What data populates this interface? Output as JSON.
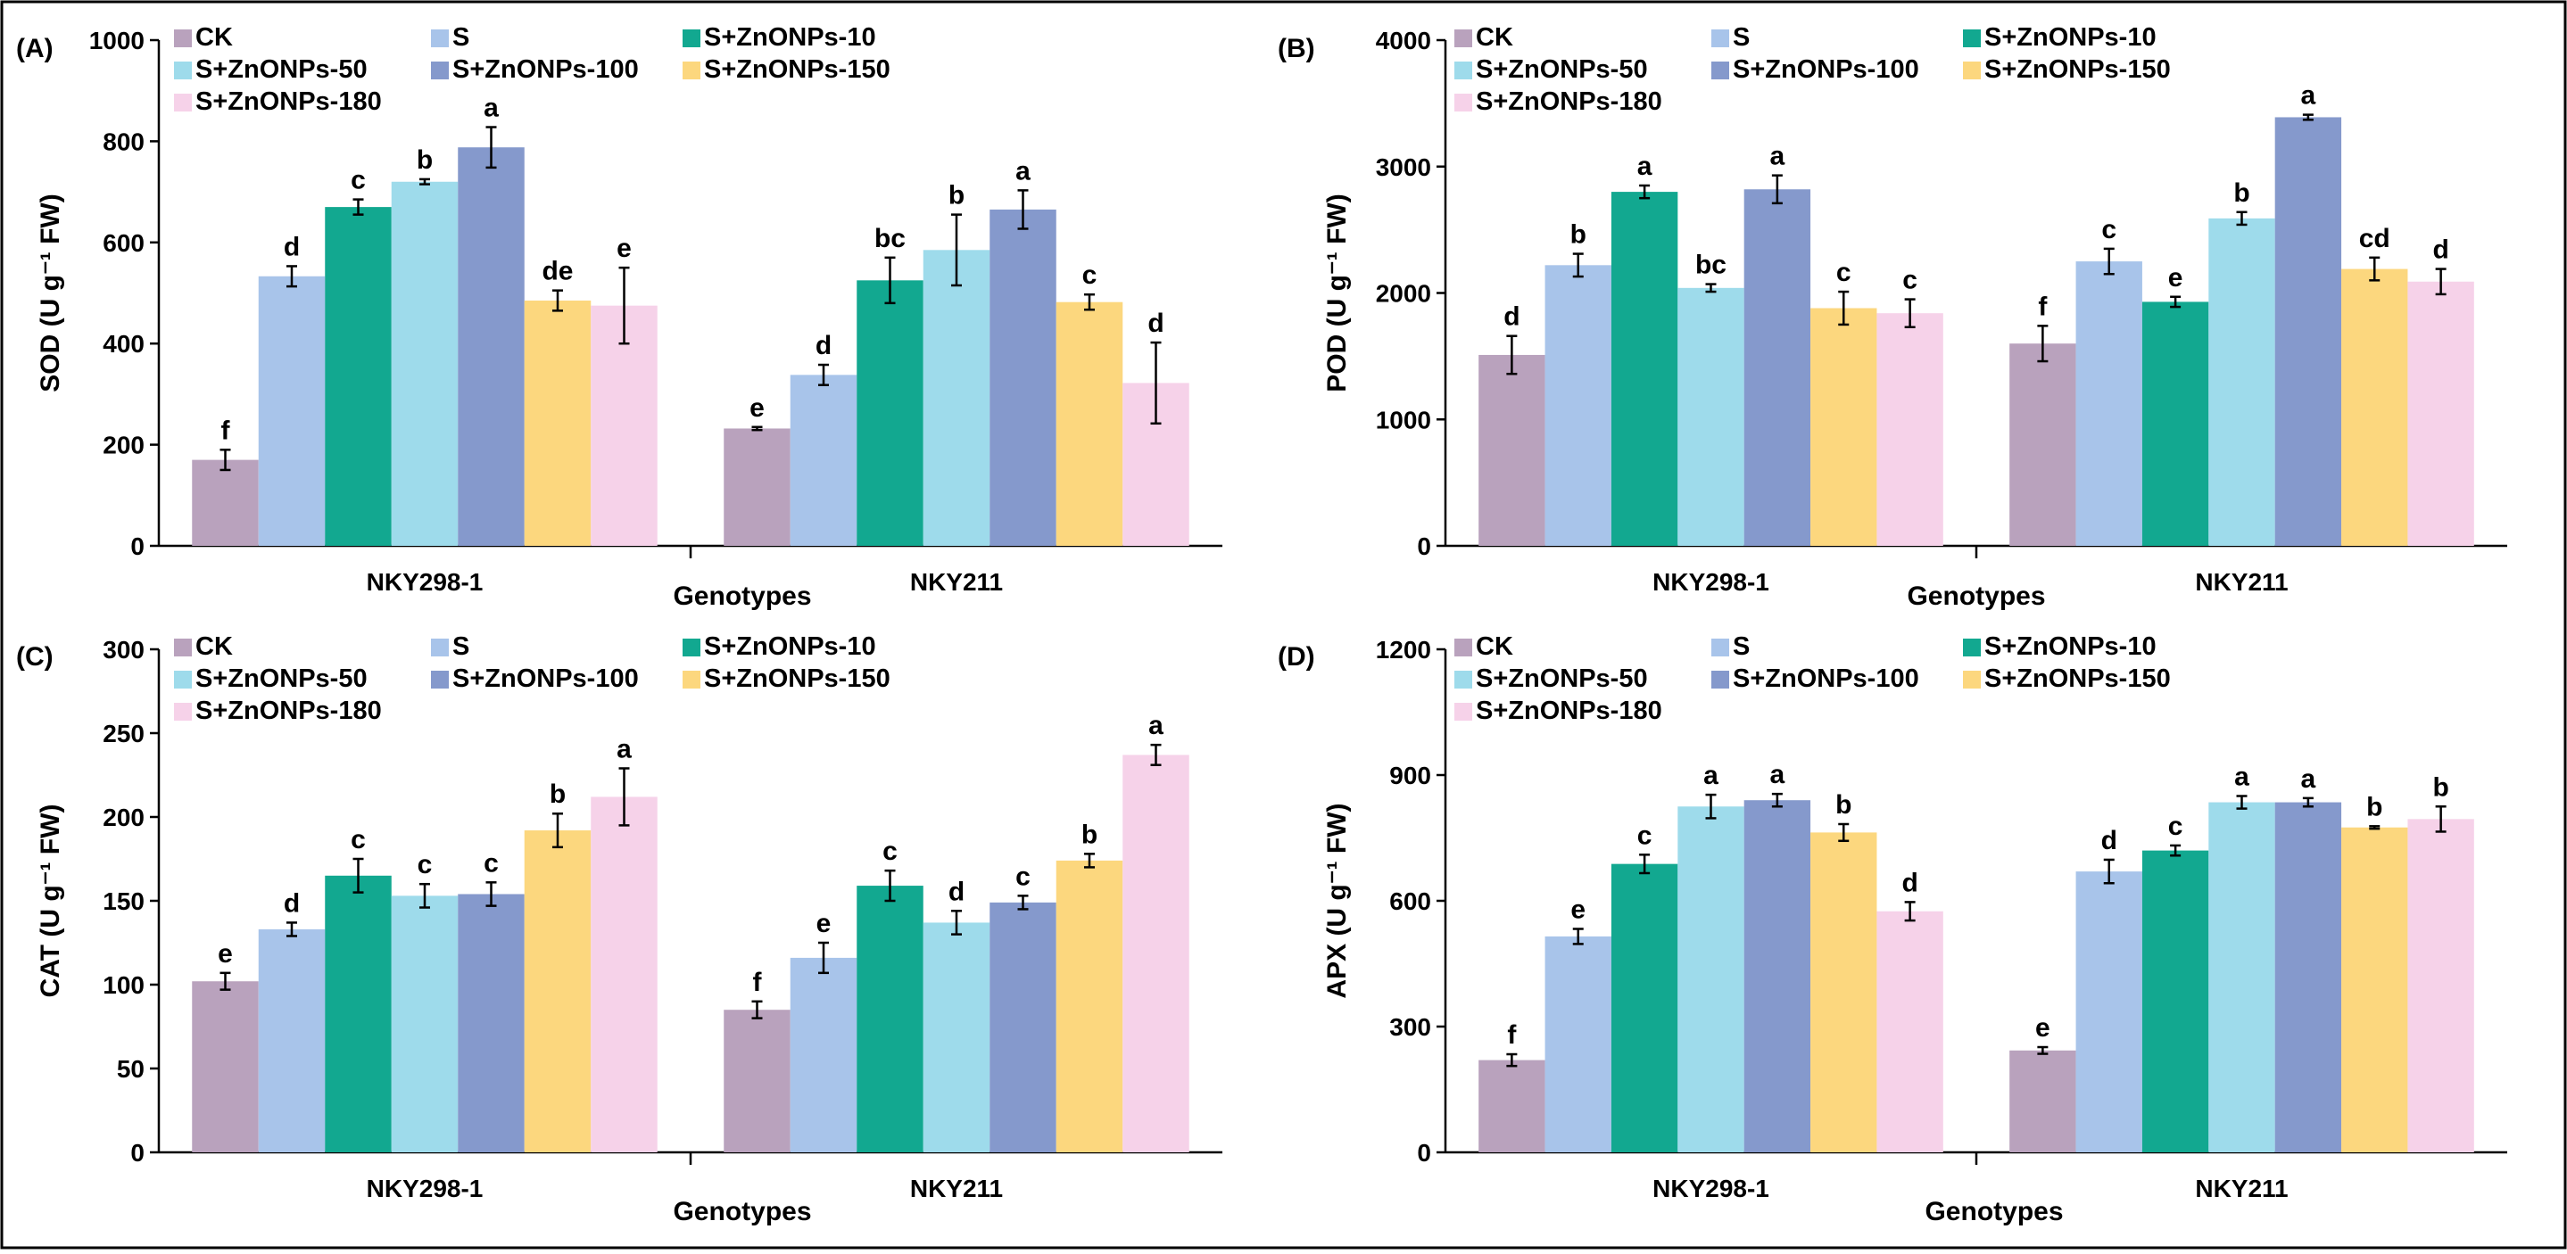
{
  "figure": {
    "series_names": [
      "CK",
      "S",
      "S+ZnONPs-10",
      "S+ZnONPs-50",
      "S+ZnONPs-100",
      "S+ZnONPs-150",
      "S+ZnONPs-180"
    ],
    "colors": [
      "#b9a2bd",
      "#a8c4ea",
      "#12a890",
      "#9edbeb",
      "#8599cc",
      "#fcd77e",
      "#f6d2e9"
    ]
  },
  "chart_data": [
    {
      "type": "bar",
      "panel_label": "(A)",
      "title": "",
      "ylabel": "SOD (U g⁻¹ FW)",
      "xlabel": "Genotypes",
      "categories": [
        "NKY298-1",
        "NKY211"
      ],
      "ylim": [
        0,
        1000
      ],
      "yticks": [
        0,
        200,
        400,
        600,
        800,
        1000
      ],
      "legend": "top-left",
      "series": [
        {
          "name": "CK",
          "values": [
            170,
            232
          ],
          "errors": [
            20,
            3
          ],
          "letters": [
            "f",
            "e"
          ]
        },
        {
          "name": "S",
          "values": [
            533,
            338
          ],
          "errors": [
            20,
            20
          ],
          "letters": [
            "d",
            "d"
          ]
        },
        {
          "name": "S+ZnONPs-10",
          "values": [
            670,
            525
          ],
          "errors": [
            15,
            45
          ],
          "letters": [
            "c",
            "bc"
          ]
        },
        {
          "name": "S+ZnONPs-50",
          "values": [
            720,
            585
          ],
          "errors": [
            5,
            70
          ],
          "letters": [
            "b",
            "b"
          ]
        },
        {
          "name": "S+ZnONPs-100",
          "values": [
            788,
            665
          ],
          "errors": [
            40,
            38
          ],
          "letters": [
            "a",
            "a"
          ]
        },
        {
          "name": "S+ZnONPs-150",
          "values": [
            485,
            482
          ],
          "errors": [
            20,
            15
          ],
          "letters": [
            "de",
            "c"
          ]
        },
        {
          "name": "S+ZnONPs-180",
          "values": [
            475,
            322
          ],
          "errors": [
            75,
            80
          ],
          "letters": [
            "e",
            "d"
          ]
        }
      ]
    },
    {
      "type": "bar",
      "panel_label": "(B)",
      "title": "",
      "ylabel": "POD (U g⁻¹ FW)",
      "xlabel": "Genotypes",
      "categories": [
        "NKY298-1",
        "NKY211"
      ],
      "ylim": [
        0,
        4000
      ],
      "yticks": [
        0,
        1000,
        2000,
        3000,
        4000
      ],
      "legend": "top-left",
      "series": [
        {
          "name": "CK",
          "values": [
            1510,
            1600
          ],
          "errors": [
            150,
            140
          ],
          "letters": [
            "d",
            "f"
          ]
        },
        {
          "name": "S",
          "values": [
            2220,
            2250
          ],
          "errors": [
            90,
            100
          ],
          "letters": [
            "b",
            "c"
          ]
        },
        {
          "name": "S+ZnONPs-10",
          "values": [
            2800,
            1930
          ],
          "errors": [
            50,
            40
          ],
          "letters": [
            "a",
            "e"
          ]
        },
        {
          "name": "S+ZnONPs-50",
          "values": [
            2040,
            2590
          ],
          "errors": [
            30,
            50
          ],
          "letters": [
            "bc",
            "b"
          ]
        },
        {
          "name": "S+ZnONPs-100",
          "values": [
            2820,
            3390
          ],
          "errors": [
            110,
            20
          ],
          "letters": [
            "a",
            "a"
          ]
        },
        {
          "name": "S+ZnONPs-150",
          "values": [
            1880,
            2190
          ],
          "errors": [
            130,
            90
          ],
          "letters": [
            "c",
            "cd"
          ]
        },
        {
          "name": "S+ZnONPs-180",
          "values": [
            1840,
            2090
          ],
          "errors": [
            110,
            100
          ],
          "letters": [
            "c",
            "d"
          ]
        }
      ]
    },
    {
      "type": "bar",
      "panel_label": "(C)",
      "title": "",
      "ylabel": "CAT (U g⁻¹ FW)",
      "xlabel": "Genotypes",
      "categories": [
        "NKY298-1",
        "NKY211"
      ],
      "ylim": [
        0,
        300
      ],
      "yticks": [
        0,
        50,
        100,
        150,
        200,
        250,
        300
      ],
      "legend": "top-left",
      "series": [
        {
          "name": "CK",
          "values": [
            102,
            85
          ],
          "errors": [
            5,
            5
          ],
          "letters": [
            "e",
            "f"
          ]
        },
        {
          "name": "S",
          "values": [
            133,
            116
          ],
          "errors": [
            4,
            9
          ],
          "letters": [
            "d",
            "e"
          ]
        },
        {
          "name": "S+ZnONPs-10",
          "values": [
            165,
            159
          ],
          "errors": [
            10,
            9
          ],
          "letters": [
            "c",
            "c"
          ]
        },
        {
          "name": "S+ZnONPs-50",
          "values": [
            153,
            137
          ],
          "errors": [
            7,
            7
          ],
          "letters": [
            "c",
            "d"
          ]
        },
        {
          "name": "S+ZnONPs-100",
          "values": [
            154,
            149
          ],
          "errors": [
            7,
            4
          ],
          "letters": [
            "c",
            "c"
          ]
        },
        {
          "name": "S+ZnONPs-150",
          "values": [
            192,
            174
          ],
          "errors": [
            10,
            4
          ],
          "letters": [
            "b",
            "b"
          ]
        },
        {
          "name": "S+ZnONPs-180",
          "values": [
            212,
            237
          ],
          "errors": [
            17,
            6
          ],
          "letters": [
            "a",
            "a"
          ]
        }
      ]
    },
    {
      "type": "bar",
      "panel_label": "(D)",
      "title": "",
      "ylabel": "APX (U g⁻¹ FW)",
      "xlabel": "Genotypes",
      "categories": [
        "NKY298-1",
        "NKY211"
      ],
      "ylim": [
        0,
        1200
      ],
      "yticks": [
        0,
        300,
        600,
        900,
        1200
      ],
      "legend": "top-left",
      "series": [
        {
          "name": "CK",
          "values": [
            220,
            243
          ],
          "errors": [
            14,
            8
          ],
          "letters": [
            "f",
            "e"
          ]
        },
        {
          "name": "S",
          "values": [
            515,
            670
          ],
          "errors": [
            18,
            28
          ],
          "letters": [
            "e",
            "d"
          ]
        },
        {
          "name": "S+ZnONPs-10",
          "values": [
            688,
            720
          ],
          "errors": [
            22,
            12
          ],
          "letters": [
            "c",
            "c"
          ]
        },
        {
          "name": "S+ZnONPs-50",
          "values": [
            825,
            835
          ],
          "errors": [
            28,
            15
          ],
          "letters": [
            "a",
            "a"
          ]
        },
        {
          "name": "S+ZnONPs-100",
          "values": [
            840,
            835
          ],
          "errors": [
            15,
            10
          ],
          "letters": [
            "a",
            "a"
          ]
        },
        {
          "name": "S+ZnONPs-150",
          "values": [
            763,
            775
          ],
          "errors": [
            20,
            3
          ],
          "letters": [
            "b",
            "b"
          ]
        },
        {
          "name": "S+ZnONPs-180",
          "values": [
            575,
            795
          ],
          "errors": [
            22,
            30
          ],
          "letters": [
            "d",
            "b"
          ]
        }
      ]
    }
  ]
}
